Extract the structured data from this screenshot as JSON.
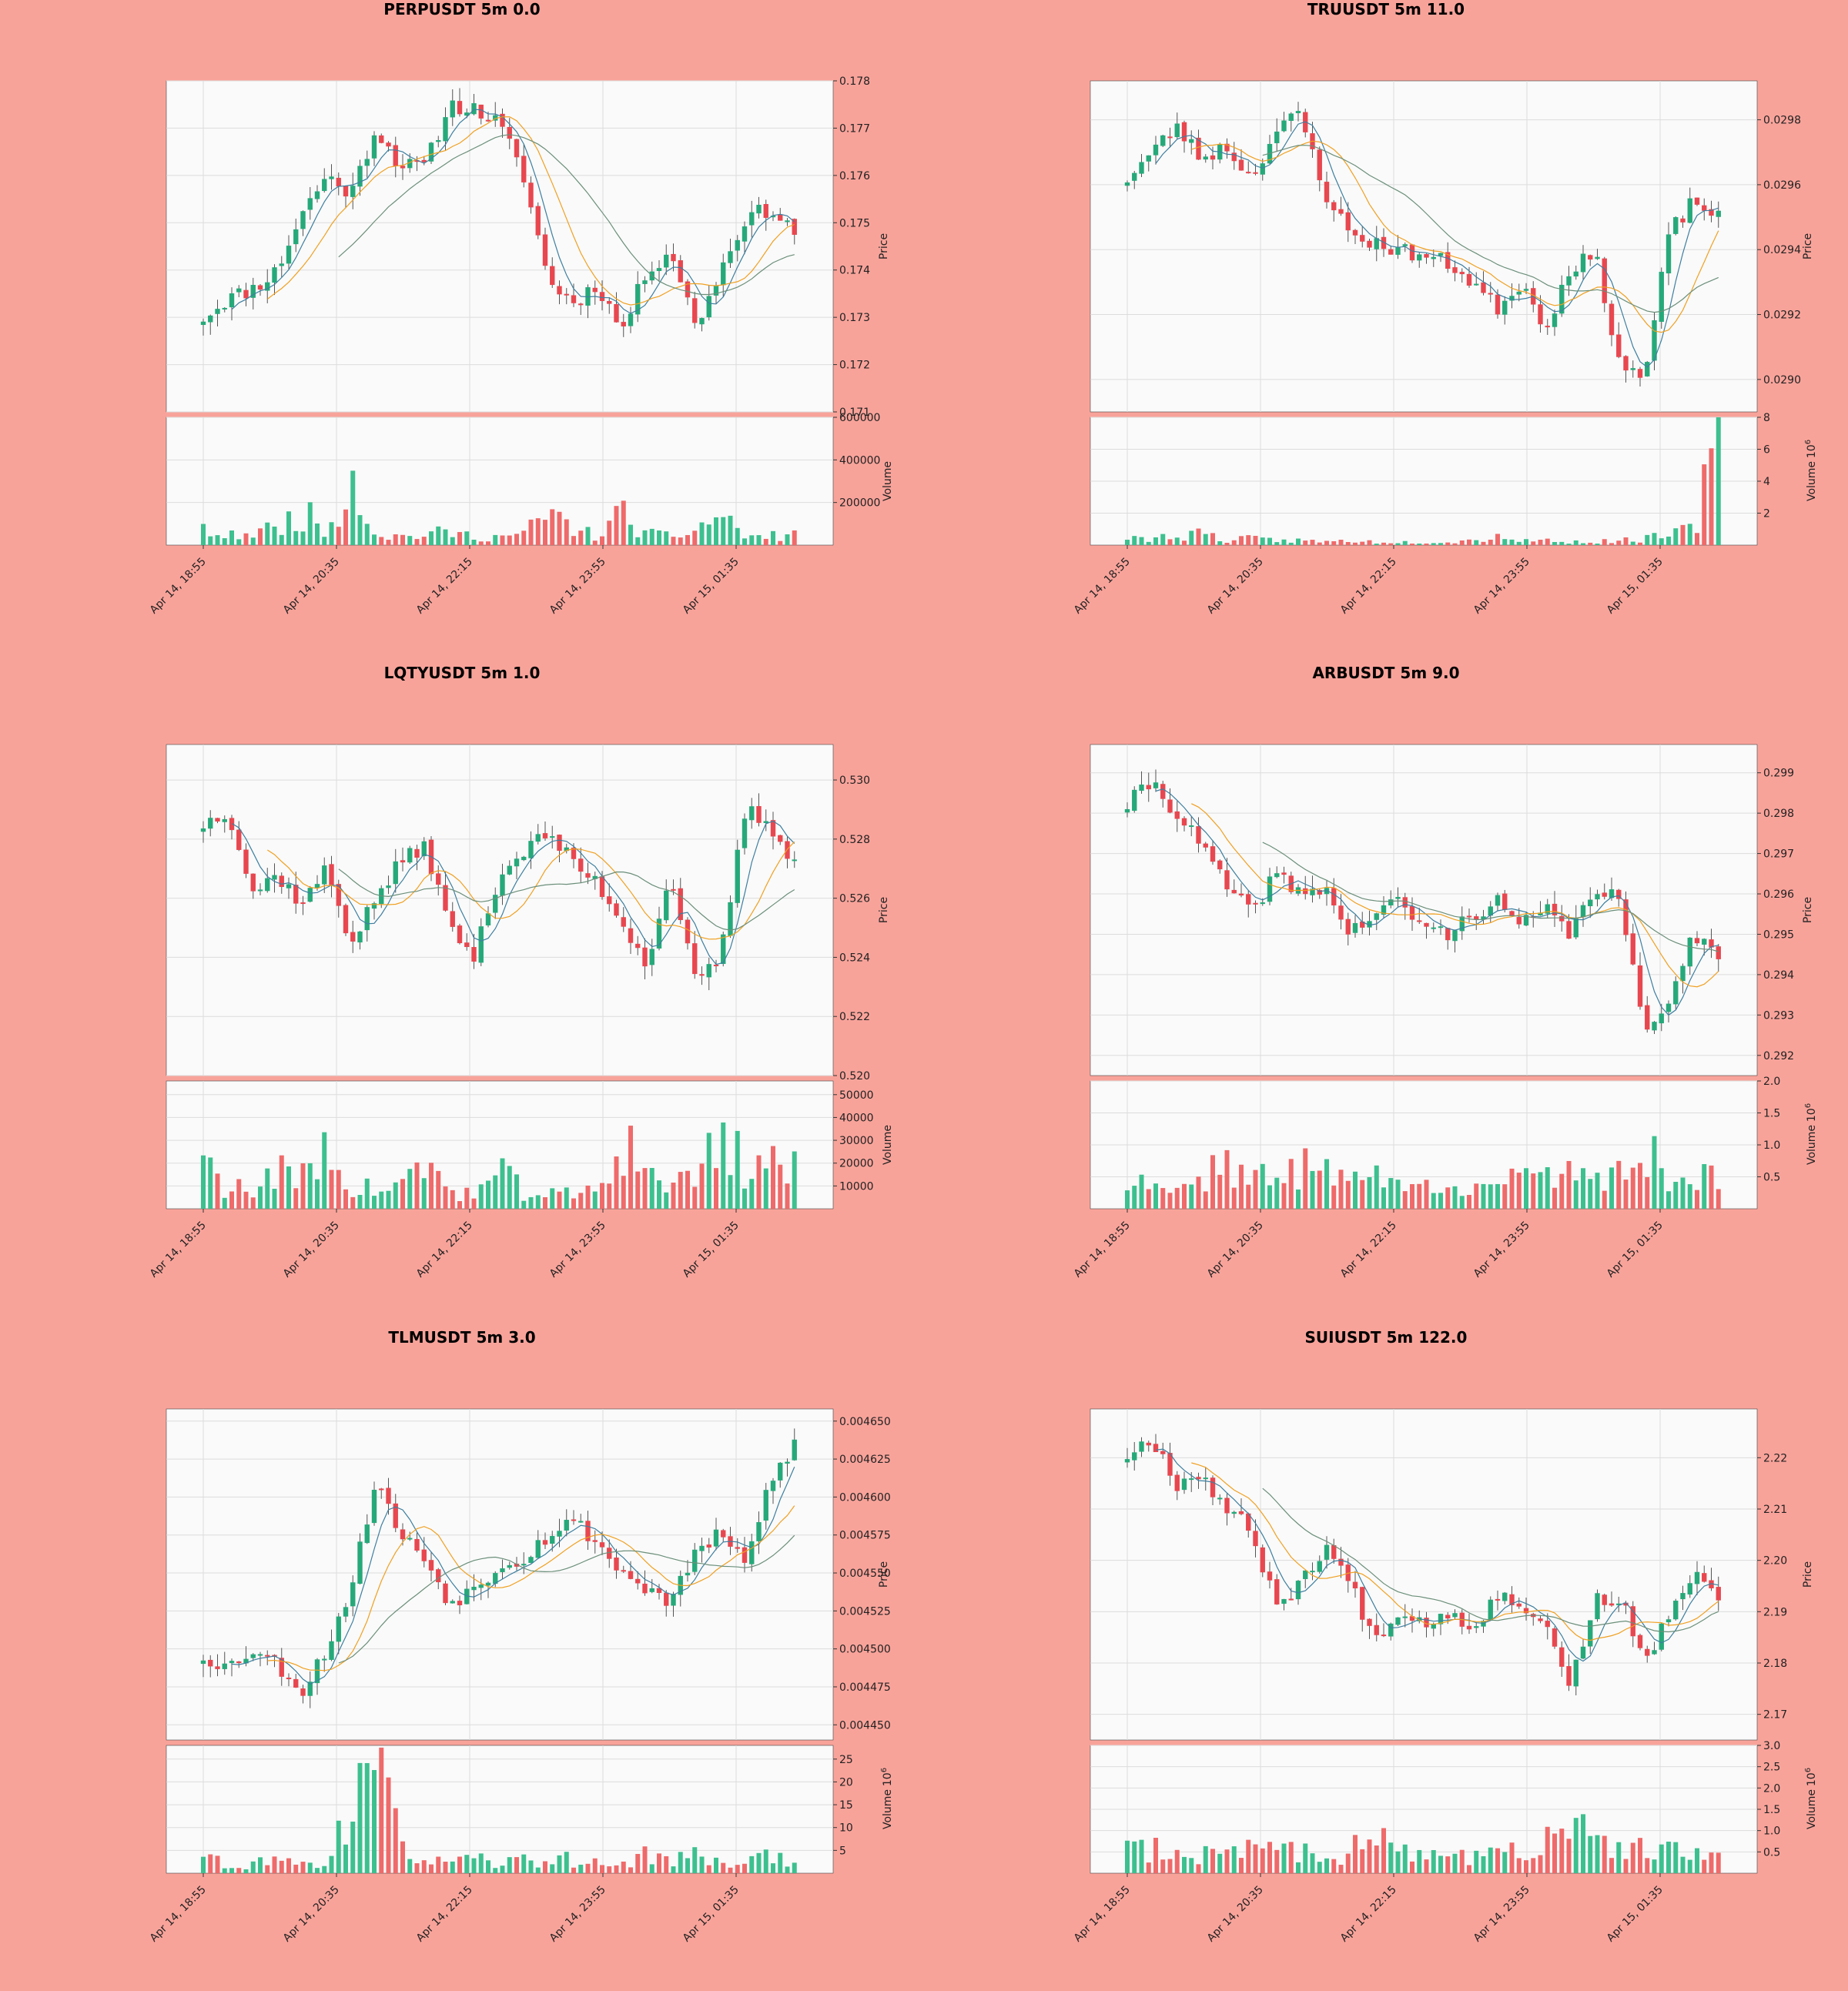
{
  "colors": {
    "background": "#f8a39a",
    "plot_bg": "#fafafa",
    "up": "#26a97a",
    "down": "#e8474f",
    "up_vol": "#3dc08f",
    "down_vol": "#ef6a6a",
    "ma_fast": "#3d7fa0",
    "ma_mid": "#f0a020",
    "ma_slow": "#6b8f7a"
  },
  "chart_data": [
    {
      "type": "candlestick",
      "title": "PERPUSDT 5m 0.0",
      "ylabel": "Price",
      "vlabel": "Volume",
      "vexp": "",
      "x_tick_labels": [
        "Apr 14, 18:55",
        "Apr 14, 20:35",
        "Apr 14, 22:15",
        "Apr 14, 23:55",
        "Apr 15, 01:35"
      ],
      "price_ticks": [
        "0.171",
        "0.172",
        "0.173",
        "0.174",
        "0.175",
        "0.176",
        "0.177",
        "0.178"
      ],
      "vol_ticks": [
        "200000",
        "400000",
        "600000"
      ],
      "ylim": [
        0.171,
        0.178
      ],
      "vlim": [
        0,
        600000
      ],
      "anchors": [
        0.173,
        0.1734,
        0.1736,
        0.174,
        0.1752,
        0.176,
        0.1756,
        0.177,
        0.1762,
        0.1762,
        0.1775,
        0.1774,
        0.1771,
        0.176,
        0.1738,
        0.1733,
        0.1737,
        0.1727,
        0.174,
        0.1744,
        0.1728,
        0.174,
        0.1751,
        0.1753,
        0.1748
      ],
      "vol_anchors": [
        70000,
        40000,
        60000,
        80000,
        160000,
        60000,
        350000,
        50000,
        40000,
        50000,
        60000,
        40000,
        40000,
        50000,
        150000,
        80000,
        40000,
        150000,
        50000,
        40000,
        70000,
        150000,
        40000,
        40000,
        50000
      ],
      "seed": 11
    },
    {
      "type": "candlestick",
      "title": "TRUUSDT 5m 11.0",
      "ylabel": "Price",
      "vlabel": "Volume",
      "vexp": "6",
      "x_tick_labels": [
        "Apr 14, 18:55",
        "Apr 14, 20:35",
        "Apr 14, 22:15",
        "Apr 14, 23:55",
        "Apr 15, 01:35"
      ],
      "price_ticks": [
        "0.0290",
        "0.0292",
        "0.0294",
        "0.0296",
        "0.0298"
      ],
      "vol_ticks": [
        "2",
        "4",
        "6",
        "8"
      ],
      "ylim": [
        0.0289,
        0.02992
      ],
      "vlim": [
        0,
        8
      ],
      "anchors": [
        0.02962,
        0.0297,
        0.02978,
        0.02968,
        0.02972,
        0.02962,
        0.02976,
        0.02982,
        0.02958,
        0.02945,
        0.02942,
        0.0294,
        0.02938,
        0.02936,
        0.0293,
        0.02922,
        0.0293,
        0.02916,
        0.02935,
        0.02938,
        0.02905,
        0.029,
        0.02945,
        0.02955,
        0.0295
      ],
      "vol_anchors": [
        0.4,
        0.4,
        0.6,
        0.8,
        0.3,
        0.4,
        0.3,
        0.3,
        0.2,
        0.3,
        0.2,
        0.2,
        0.2,
        0.2,
        0.3,
        0.6,
        0.3,
        0.3,
        0.2,
        0.2,
        0.3,
        0.4,
        0.6,
        1.0,
        6.5
      ],
      "seed": 23
    },
    {
      "type": "candlestick",
      "title": "LQTYUSDT 5m 1.0",
      "ylabel": "Price",
      "vlabel": "Volume",
      "vexp": "",
      "x_tick_labels": [
        "Apr 14, 18:55",
        "Apr 14, 20:35",
        "Apr 14, 22:15",
        "Apr 14, 23:55",
        "Apr 15, 01:35"
      ],
      "price_ticks": [
        "0.520",
        "0.522",
        "0.524",
        "0.526",
        "0.528",
        "0.530"
      ],
      "vol_ticks": [
        "10000",
        "20000",
        "30000",
        "40000",
        "50000"
      ],
      "ylim": [
        0.52,
        0.5312
      ],
      "vlim": [
        0,
        56000
      ],
      "anchors": [
        0.5285,
        0.529,
        0.5262,
        0.5268,
        0.5258,
        0.527,
        0.5245,
        0.526,
        0.5272,
        0.5278,
        0.525,
        0.524,
        0.5268,
        0.5276,
        0.5282,
        0.5272,
        0.5265,
        0.5252,
        0.5238,
        0.5268,
        0.523,
        0.524,
        0.529,
        0.5285,
        0.5272
      ],
      "vol_anchors": [
        20000,
        10000,
        8000,
        16000,
        12000,
        30000,
        10000,
        8000,
        10000,
        20000,
        8000,
        6000,
        15000,
        8000,
        6000,
        6000,
        8000,
        30000,
        18000,
        10000,
        14000,
        35000,
        18000,
        22000,
        16000
      ],
      "seed": 37
    },
    {
      "type": "candlestick",
      "title": "ARBUSDT 5m 9.0",
      "ylabel": "Price",
      "vlabel": "Volume",
      "vexp": "6",
      "x_tick_labels": [
        "Apr 14, 18:55",
        "Apr 14, 20:35",
        "Apr 14, 22:15",
        "Apr 14, 23:55",
        "Apr 15, 01:35"
      ],
      "price_ticks": [
        "0.292",
        "0.293",
        "0.294",
        "0.295",
        "0.296",
        "0.297",
        "0.298",
        "0.299"
      ],
      "vol_ticks": [
        "0.5",
        "1.0",
        "1.5",
        "2.0"
      ],
      "ylim": [
        0.2915,
        0.2997
      ],
      "vlim": [
        0,
        2.0
      ],
      "anchors": [
        0.2982,
        0.2988,
        0.298,
        0.2972,
        0.2962,
        0.2955,
        0.2965,
        0.296,
        0.2962,
        0.295,
        0.2955,
        0.2958,
        0.2952,
        0.295,
        0.2955,
        0.2958,
        0.2952,
        0.2956,
        0.295,
        0.2962,
        0.2958,
        0.2925,
        0.2935,
        0.295,
        0.2945
      ],
      "vol_anchors": [
        0.5,
        0.4,
        0.3,
        0.5,
        0.8,
        0.5,
        0.4,
        0.6,
        1.0,
        0.4,
        0.5,
        0.4,
        0.3,
        0.5,
        0.4,
        0.4,
        0.4,
        0.5,
        0.7,
        0.6,
        0.5,
        1.0,
        0.5,
        0.6,
        0.4
      ],
      "seed": 41
    },
    {
      "type": "candlestick",
      "title": "TLMUSDT 5m 3.0",
      "ylabel": "Price",
      "vlabel": "Volume",
      "vexp": "6",
      "x_tick_labels": [
        "Apr 14, 18:55",
        "Apr 14, 20:35",
        "Apr 14, 22:15",
        "Apr 14, 23:55",
        "Apr 15, 01:35"
      ],
      "price_ticks": [
        "0.004450",
        "0.004475",
        "0.004500",
        "0.004525",
        "0.004550",
        "0.004575",
        "0.004600",
        "0.004625",
        "0.004650"
      ],
      "vol_ticks": [
        "5",
        "10",
        "15",
        "20",
        "25"
      ],
      "ylim": [
        0.00444,
        0.004658
      ],
      "vlim": [
        0,
        28
      ],
      "anchors": [
        0.004495,
        0.004488,
        0.0045,
        0.00449,
        0.004472,
        0.0045,
        0.00454,
        0.004612,
        0.004575,
        0.00456,
        0.00453,
        0.00454,
        0.004555,
        0.00456,
        0.004575,
        0.004585,
        0.00457,
        0.00455,
        0.00454,
        0.00453,
        0.004565,
        0.004575,
        0.004555,
        0.00461,
        0.004635
      ],
      "vol_anchors": [
        3,
        2,
        2,
        3,
        2,
        3,
        15,
        20,
        8,
        3,
        2,
        3,
        2,
        3,
        3,
        3,
        2,
        2,
        4,
        3,
        4,
        2,
        3,
        4,
        3
      ],
      "seed": 53
    },
    {
      "type": "candlestick",
      "title": "SUIUSDT 5m 122.0",
      "ylabel": "Price",
      "vlabel": "Volume",
      "vexp": "6",
      "x_tick_labels": [
        "Apr 14, 18:55",
        "Apr 14, 20:35",
        "Apr 14, 22:15",
        "Apr 14, 23:55",
        "Apr 15, 01:35"
      ],
      "price_ticks": [
        "2.17",
        "2.18",
        "2.19",
        "2.20",
        "2.21",
        "2.22"
      ],
      "vol_ticks": [
        "0.5",
        "1.0",
        "1.5",
        "2.0",
        "2.5",
        "3.0"
      ],
      "ylim": [
        2.165,
        2.2295
      ],
      "vlim": [
        0,
        3.0
      ],
      "anchors": [
        2.2205,
        2.224,
        2.215,
        2.217,
        2.21,
        2.206,
        2.192,
        2.195,
        2.203,
        2.196,
        2.185,
        2.19,
        2.188,
        2.19,
        2.187,
        2.193,
        2.192,
        2.187,
        2.176,
        2.192,
        2.193,
        2.179,
        2.19,
        2.197,
        2.192
      ],
      "vol_anchors": [
        0.5,
        0.6,
        0.5,
        0.4,
        0.5,
        0.6,
        0.9,
        0.5,
        0.4,
        0.5,
        1.2,
        0.4,
        0.5,
        0.4,
        0.4,
        0.5,
        0.5,
        0.7,
        1.0,
        0.8,
        0.6,
        0.5,
        0.5,
        0.4,
        0.5
      ],
      "seed": 67
    }
  ]
}
